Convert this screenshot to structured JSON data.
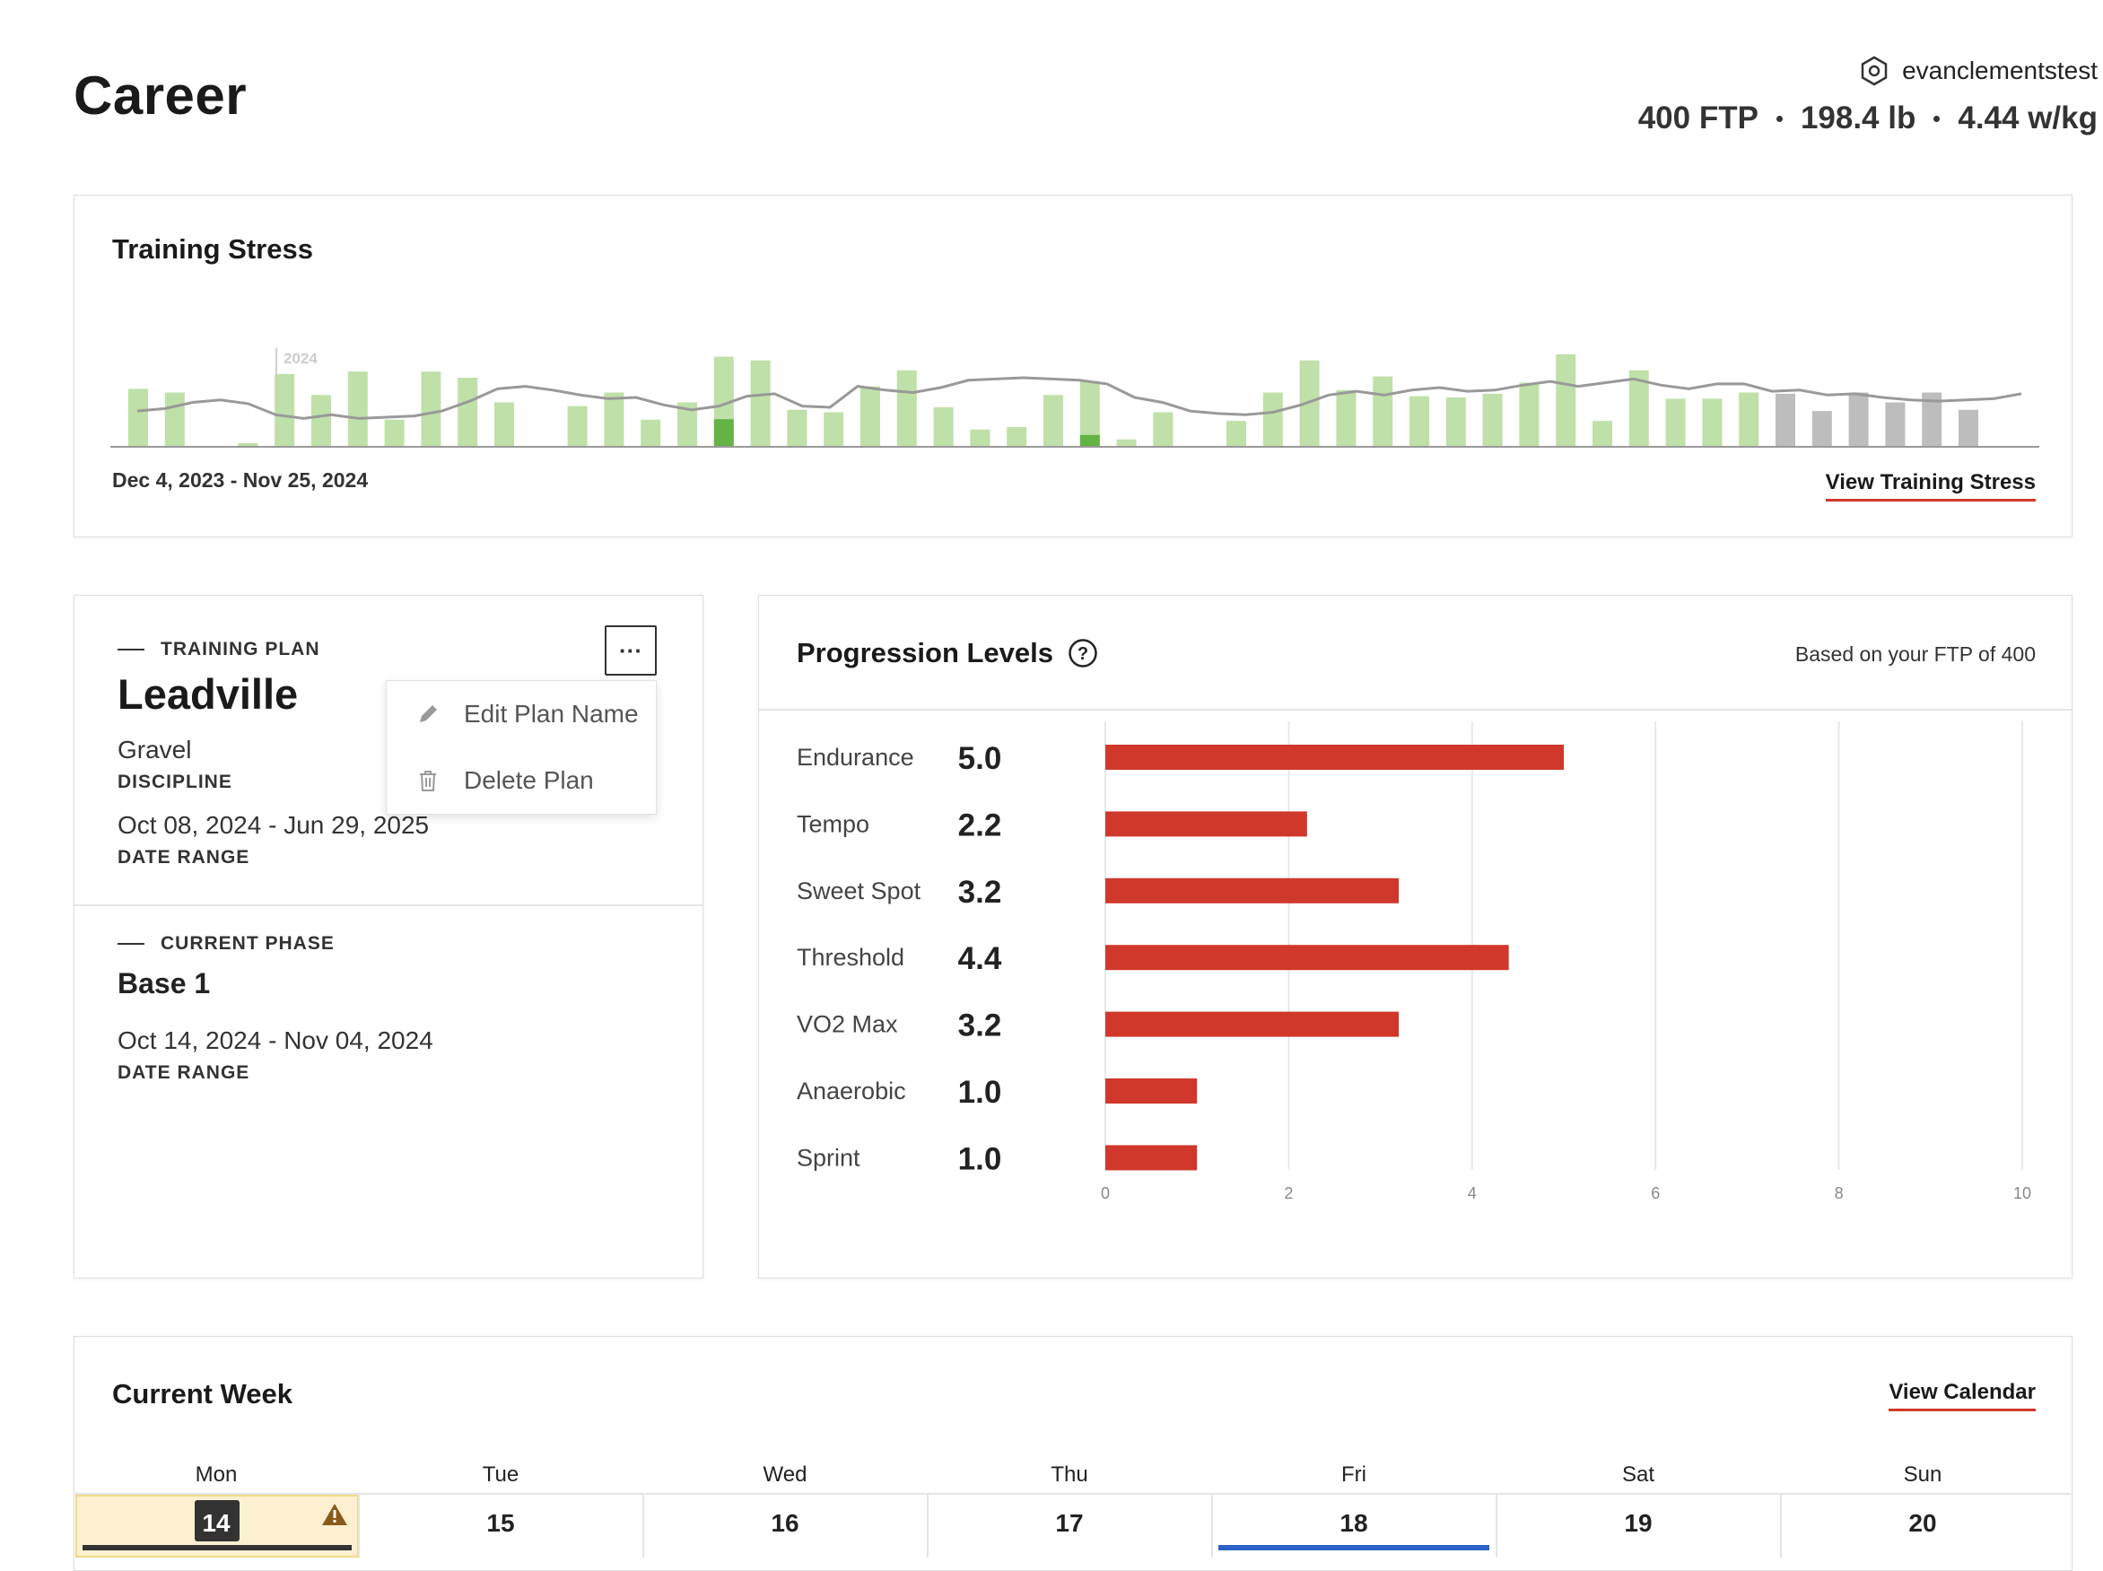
{
  "page": {
    "title": "Career"
  },
  "user": {
    "username": "evanclementstest",
    "ftp": "400 FTP",
    "weight": "198.4 lb",
    "wkg": "4.44 w/kg"
  },
  "training_stress": {
    "title": "Training Stress",
    "year_label": "2024",
    "date_range": "Dec 4, 2023 - Nov 25, 2024",
    "link": "View Training Stress"
  },
  "plan": {
    "eyebrow": "TRAINING PLAN",
    "name": "Leadville",
    "discipline_value": "Gravel",
    "discipline_label": "DISCIPLINE",
    "date_value": "Oct 08, 2024 - Jun 29, 2025",
    "date_label": "DATE RANGE",
    "more_label": "···",
    "menu": {
      "edit": "Edit Plan Name",
      "delete": "Delete Plan"
    }
  },
  "phase": {
    "eyebrow": "CURRENT PHASE",
    "name": "Base 1",
    "date_value": "Oct 14, 2024 - Nov 04, 2024",
    "date_label": "DATE RANGE"
  },
  "progression": {
    "title": "Progression Levels",
    "subtitle": "Based on your FTP of 400",
    "help_icon": "help-circle-icon"
  },
  "week": {
    "title": "Current Week",
    "link": "View Calendar",
    "days": [
      {
        "name": "Mon",
        "num": "14"
      },
      {
        "name": "Tue",
        "num": "15"
      },
      {
        "name": "Wed",
        "num": "16"
      },
      {
        "name": "Thu",
        "num": "17"
      },
      {
        "name": "Fri",
        "num": "18"
      },
      {
        "name": "Sat",
        "num": "19"
      },
      {
        "name": "Sun",
        "num": "20"
      }
    ]
  },
  "chart_data": [
    {
      "type": "bar",
      "title": "Training Stress",
      "note": "weekly stress bars (green = completed, dark green = partial, gray = planned) with a trend line",
      "values": [
        47,
        44,
        0,
        3,
        59,
        42,
        61,
        22,
        61,
        56,
        36,
        0,
        33,
        44,
        22,
        36,
        73,
        70,
        30,
        28,
        49,
        62,
        32,
        14,
        16,
        42,
        53,
        6,
        28,
        0,
        21,
        44,
        70,
        46,
        57,
        41,
        40,
        43,
        52,
        75,
        21,
        62,
        39,
        39,
        44,
        43,
        29,
        44,
        36,
        44,
        30
      ],
      "planned_from_index": 45,
      "partial": {
        "16": 14,
        "26": 6
      },
      "trend": [
        29,
        31,
        36,
        38,
        35,
        26,
        23,
        26,
        23,
        24,
        25,
        29,
        37,
        47,
        49,
        46,
        42,
        39,
        40,
        34,
        30,
        33,
        41,
        43,
        33,
        32,
        49,
        46,
        44,
        48,
        54,
        55,
        56,
        55,
        54,
        51,
        40,
        36,
        29,
        27,
        26,
        28,
        34,
        42,
        45,
        42,
        46,
        48,
        45,
        46,
        50,
        53,
        49,
        52,
        55,
        50,
        47,
        51,
        51,
        45,
        46,
        42,
        43,
        40,
        38,
        37,
        38,
        39,
        43
      ],
      "ylim": [
        0,
        80
      ]
    },
    {
      "type": "bar",
      "title": "Progression Levels",
      "categories": [
        "Endurance",
        "Tempo",
        "Sweet Spot",
        "Threshold",
        "VO2 Max",
        "Anaerobic",
        "Sprint"
      ],
      "values": [
        5.0,
        2.2,
        3.2,
        4.4,
        3.2,
        1.0,
        1.0
      ],
      "value_labels": [
        "5.0",
        "2.2",
        "3.2",
        "4.4",
        "3.2",
        "1.0",
        "1.0"
      ],
      "xlim": [
        0,
        10
      ],
      "ticks": [
        "0",
        "2",
        "4",
        "6",
        "8",
        "10"
      ],
      "orientation": "horizontal",
      "color": "#d0382b"
    }
  ],
  "colors": {
    "accent": "#d0382b",
    "bar_green": "#bfe0a8",
    "bar_green_dark": "#63b345",
    "bar_gray": "#bdbdbd",
    "today_bg": "#fdf0d0",
    "fri_bar": "#2b62c5"
  }
}
